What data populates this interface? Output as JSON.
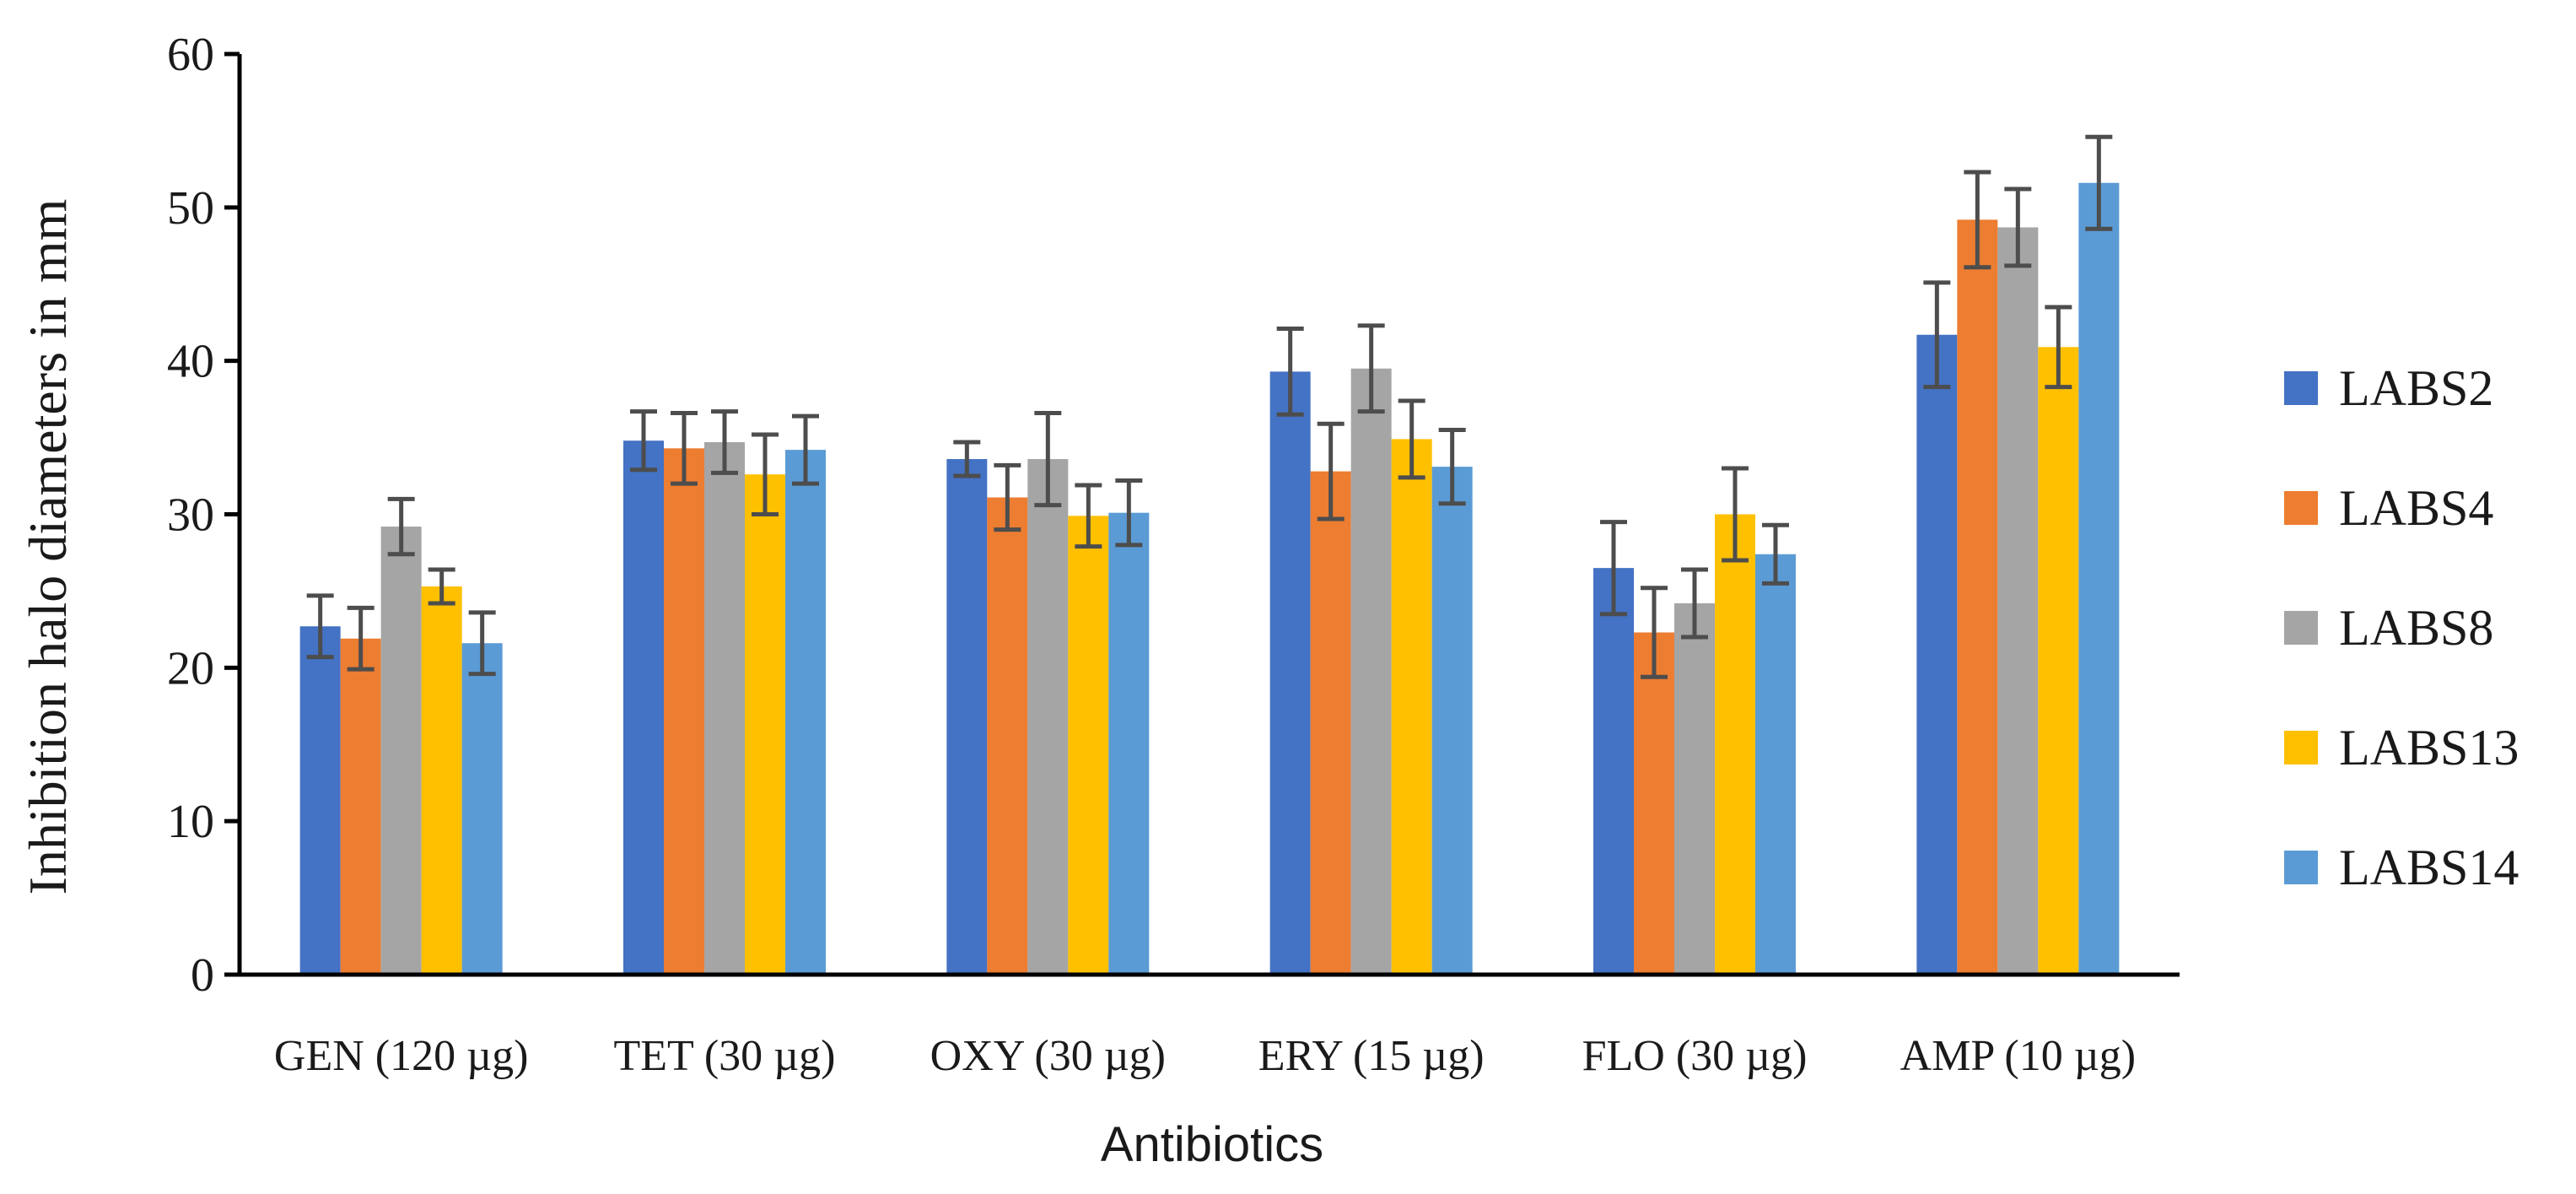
{
  "chart_data": {
    "type": "bar",
    "title": "",
    "xlabel": "Antibiotics",
    "ylabel": "Inhibition halo diameters in mm",
    "ylim": [
      0,
      60
    ],
    "yticks": [
      0,
      10,
      20,
      30,
      40,
      50,
      60
    ],
    "grid": false,
    "legend_position": "right",
    "error_bars": true,
    "categories": [
      "GEN (120 µg)",
      "TET (30 µg)",
      "OXY (30 µg)",
      "ERY (15 µg)",
      "FLO (30 µg)",
      "AMP (10 µg)"
    ],
    "series": [
      {
        "name": "LABS2",
        "color": "#4472C4",
        "values": [
          22.7,
          34.8,
          33.6,
          39.3,
          26.5,
          41.7
        ],
        "errors": [
          2.0,
          1.9,
          1.1,
          2.8,
          3.0,
          3.4
        ]
      },
      {
        "name": "LABS4",
        "color": "#ED7D31",
        "values": [
          21.9,
          34.3,
          31.1,
          32.8,
          22.3,
          49.2
        ],
        "errors": [
          2.0,
          2.3,
          2.1,
          3.1,
          2.9,
          3.1
        ]
      },
      {
        "name": "LABS8",
        "color": "#A5A5A5",
        "values": [
          29.2,
          34.7,
          33.6,
          39.5,
          24.2,
          48.7
        ],
        "errors": [
          1.8,
          2.0,
          3.0,
          2.8,
          2.2,
          2.5
        ]
      },
      {
        "name": "LABS13",
        "color": "#FFC000",
        "values": [
          25.3,
          32.6,
          29.9,
          34.9,
          30.0,
          40.9
        ],
        "errors": [
          1.1,
          2.6,
          2.0,
          2.5,
          3.0,
          2.6
        ]
      },
      {
        "name": "LABS14",
        "color": "#5B9BD5",
        "values": [
          21.6,
          34.2,
          30.1,
          33.1,
          27.4,
          51.6
        ],
        "errors": [
          2.0,
          2.2,
          2.1,
          2.4,
          1.9,
          3.0
        ]
      }
    ]
  }
}
